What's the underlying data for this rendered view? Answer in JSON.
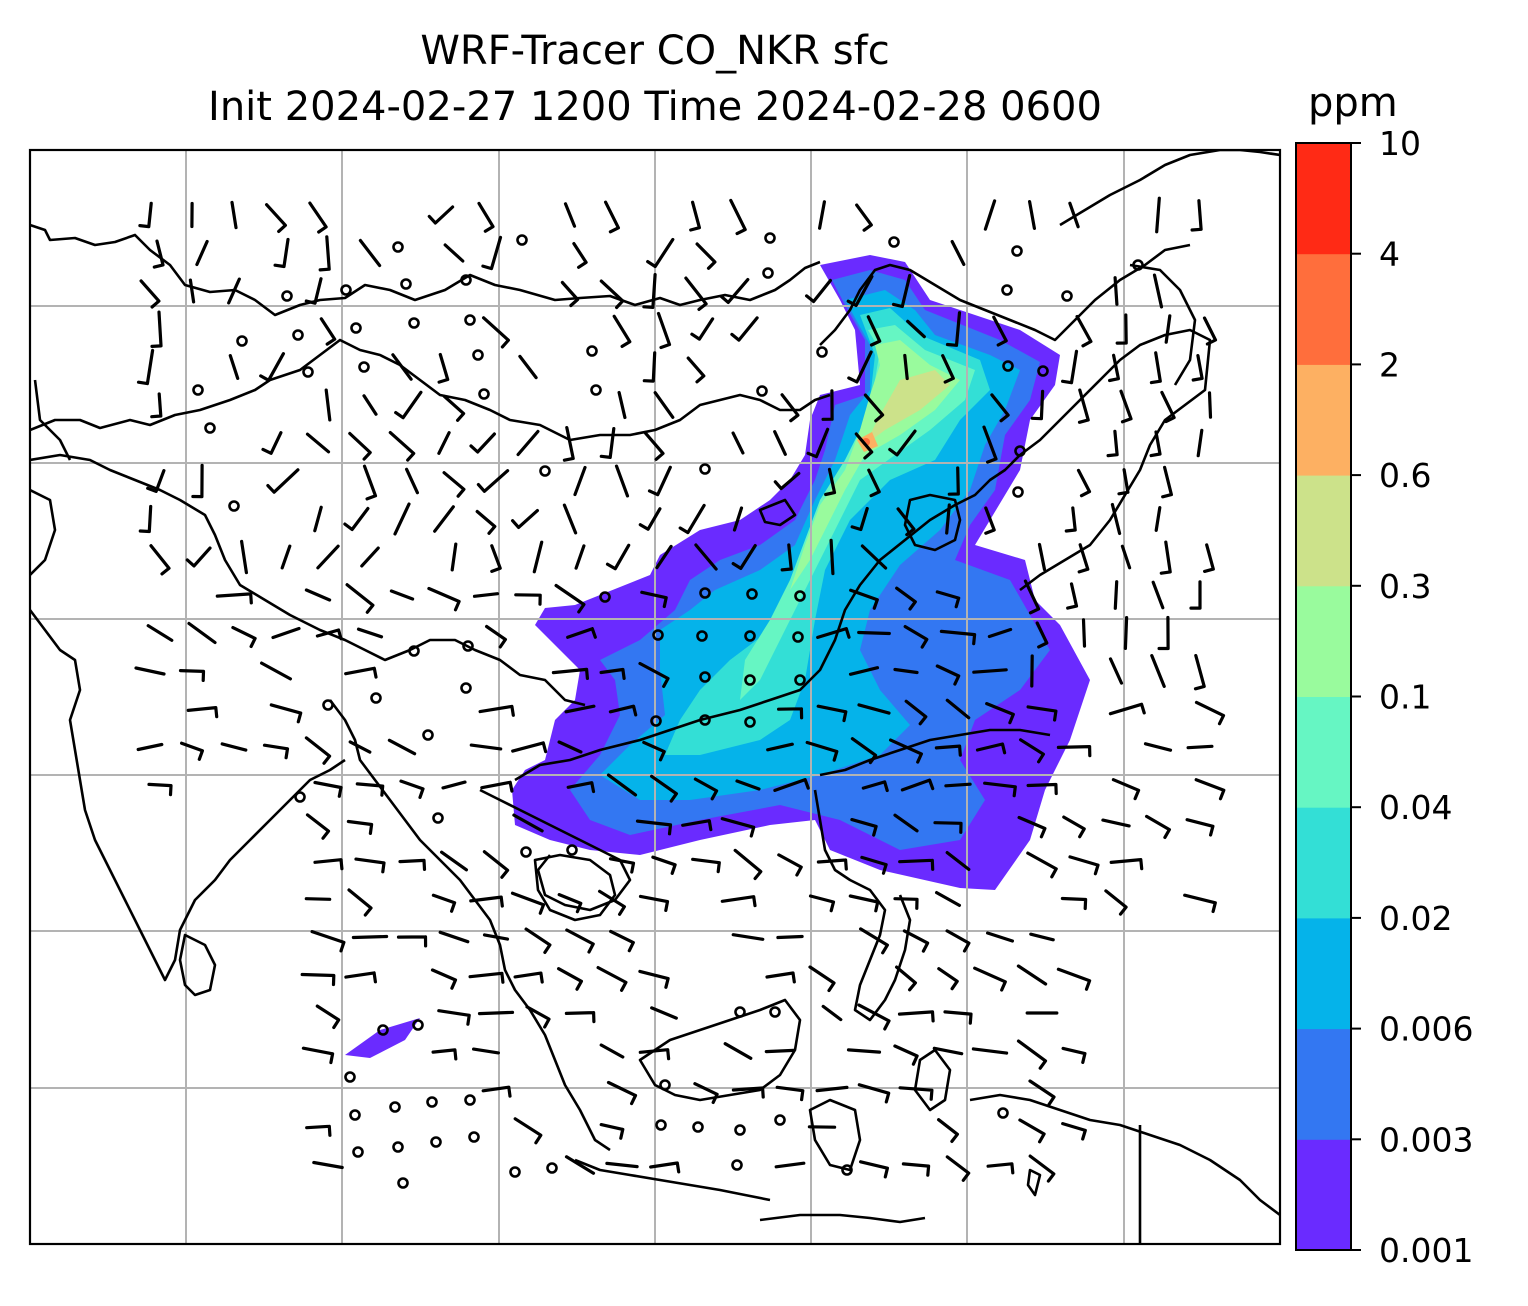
{
  "title": {
    "line1": "WRF-Tracer CO_NKR sfc",
    "line2": "Init 2024-02-27 1200 Time 2024-02-28 0600"
  },
  "colorbar": {
    "unit": "ppm",
    "levels": [
      "0.001",
      "0.003",
      "0.006",
      "0.02",
      "0.04",
      "0.1",
      "0.3",
      "0.6",
      "2",
      "4",
      "10"
    ],
    "colors": [
      "#6a2bff",
      "#3377f2",
      "#05b3ea",
      "#33dfd6",
      "#66f6c3",
      "#99fb9d",
      "#cce28a",
      "#fdb062",
      "#ff6e3c",
      "#ff2a15"
    ]
  },
  "map": {
    "land_outline_color": "#000000",
    "gridline_color": "#b3b3b3",
    "gridlines": "on",
    "vectors": "wind barbs and calm circles"
  }
}
